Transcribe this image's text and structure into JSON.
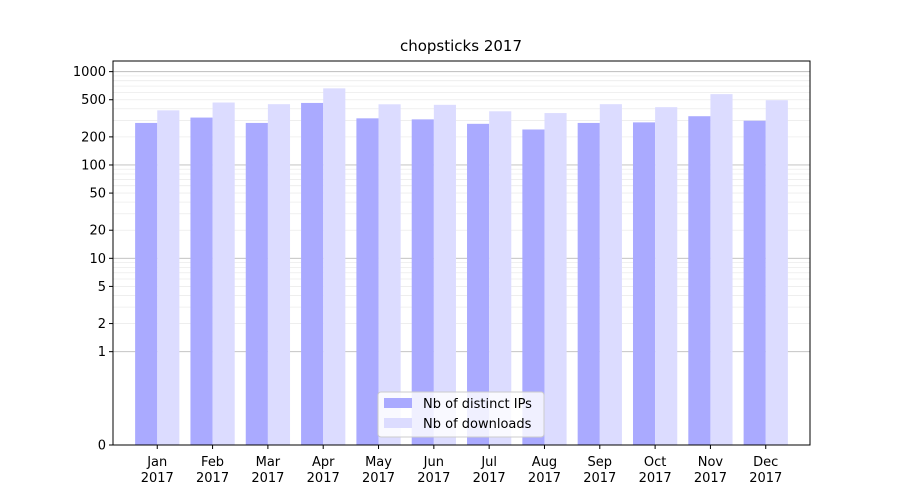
{
  "chart_data": {
    "type": "bar",
    "title": "chopsticks 2017",
    "xlabel": "",
    "ylabel": "",
    "yscale": "symlog",
    "ylim": [
      0,
      1300
    ],
    "yticks": [
      0,
      1,
      2,
      5,
      10,
      20,
      50,
      100,
      200,
      500,
      1000
    ],
    "ytick_labels": [
      "0",
      "1",
      "2",
      "5",
      "10",
      "20",
      "50",
      "100",
      "200",
      "500",
      "1000"
    ],
    "grid": true,
    "legend_position": "lower center",
    "categories": [
      "Jan\n2017",
      "Feb\n2017",
      "Mar\n2017",
      "Apr\n2017",
      "May\n2017",
      "Jun\n2017",
      "Jul\n2017",
      "Aug\n2017",
      "Sep\n2017",
      "Oct\n2017",
      "Nov\n2017",
      "Dec\n2017"
    ],
    "series": [
      {
        "name": "Nb of distinct IPs",
        "color": "#aaaaff",
        "values": [
          282,
          322,
          282,
          462,
          316,
          308,
          276,
          240,
          282,
          286,
          333,
          298
        ]
      },
      {
        "name": "Nb of downloads",
        "color": "#dcdcff",
        "values": [
          385,
          467,
          448,
          662,
          447,
          441,
          376,
          360,
          448,
          416,
          574,
          494
        ]
      }
    ]
  }
}
